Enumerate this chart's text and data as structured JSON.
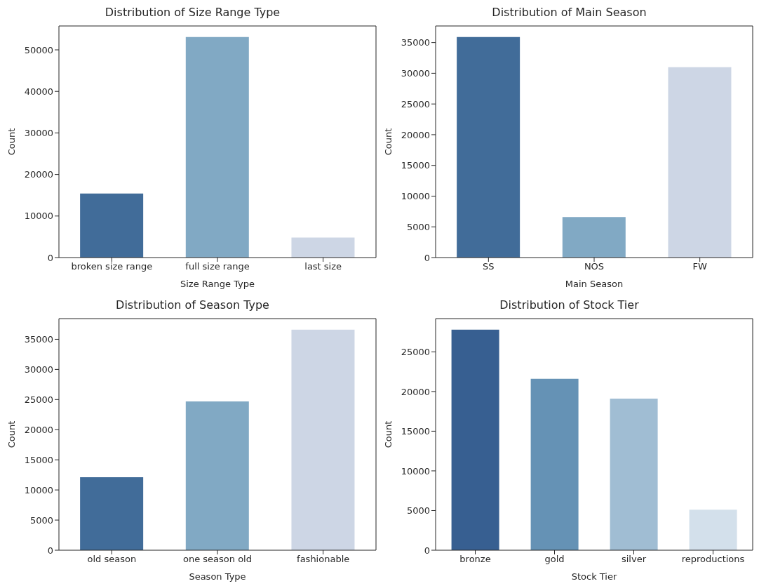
{
  "chart_data": [
    {
      "type": "bar",
      "title": "Distribution of Size Range Type",
      "xlabel": "Size Range Type",
      "ylabel": "Count",
      "categories": [
        "broken size range",
        "full size range",
        "last size"
      ],
      "values": [
        15400,
        53100,
        4800
      ],
      "colors": [
        "#416c99",
        "#81a9c4",
        "#cdd6e5"
      ],
      "ylim": [
        0,
        55750
      ],
      "yticks": [
        0,
        10000,
        20000,
        30000,
        40000,
        50000
      ],
      "grid": false,
      "legend": false
    },
    {
      "type": "bar",
      "title": "Distribution of Main Season",
      "xlabel": "Main Season",
      "ylabel": "Count",
      "categories": [
        "SS",
        "NOS",
        "FW"
      ],
      "values": [
        35900,
        6600,
        31000
      ],
      "colors": [
        "#416c99",
        "#81a9c4",
        "#cdd6e5"
      ],
      "ylim": [
        0,
        37700
      ],
      "yticks": [
        0,
        5000,
        10000,
        15000,
        20000,
        25000,
        30000,
        35000
      ],
      "grid": false,
      "legend": false
    },
    {
      "type": "bar",
      "title": "Distribution of Season Type",
      "xlabel": "Season Type",
      "ylabel": "Count",
      "categories": [
        "old season",
        "one season old",
        "fashionable"
      ],
      "values": [
        12100,
        24700,
        36600
      ],
      "colors": [
        "#416c99",
        "#81a9c4",
        "#cdd6e5"
      ],
      "ylim": [
        0,
        38430
      ],
      "yticks": [
        0,
        5000,
        10000,
        15000,
        20000,
        25000,
        30000,
        35000
      ],
      "grid": false,
      "legend": false
    },
    {
      "type": "bar",
      "title": "Distribution of Stock Tier",
      "xlabel": "Stock Tier",
      "ylabel": "Count",
      "categories": [
        "bronze",
        "gold",
        "silver",
        "reproductions"
      ],
      "values": [
        27800,
        21600,
        19100,
        5100
      ],
      "colors": [
        "#375f91",
        "#6592b5",
        "#a0bdd3",
        "#d3e0eb"
      ],
      "ylim": [
        0,
        29190
      ],
      "yticks": [
        0,
        5000,
        10000,
        15000,
        20000,
        25000
      ],
      "grid": false,
      "legend": false
    }
  ]
}
